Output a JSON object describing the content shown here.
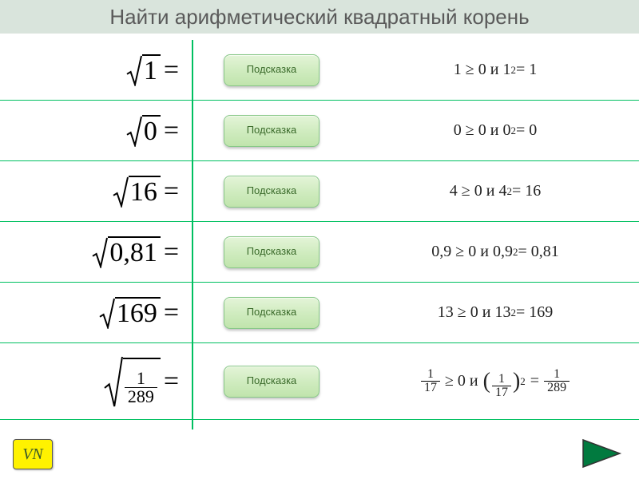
{
  "header": {
    "title": "Найти арифметический квадратный корень",
    "bg_color": "#d9e4dc",
    "text_color": "#5a5a5a"
  },
  "rows": [
    {
      "radicand": "1",
      "hint_label": "Подсказка",
      "answer": {
        "base": "1",
        "squared": "1",
        "result": "1"
      }
    },
    {
      "radicand": "0",
      "hint_label": "Подсказка",
      "answer": {
        "base": "0",
        "squared": "0",
        "result": "0"
      }
    },
    {
      "radicand": "16",
      "hint_label": "Подсказка",
      "answer": {
        "base": "4",
        "squared": "4",
        "result": "16"
      }
    },
    {
      "radicand": "0,81",
      "hint_label": "Подсказка",
      "answer": {
        "base": "0,9",
        "squared": "0,9",
        "result": "0,81"
      }
    },
    {
      "radicand": "169",
      "hint_label": "Подсказка",
      "answer": {
        "base": "13",
        "squared": "13",
        "result": "169"
      }
    },
    {
      "radicand_frac": {
        "num": "1",
        "den": "289"
      },
      "hint_label": "Подсказка",
      "answer_frac": {
        "base": {
          "num": "1",
          "den": "17"
        },
        "squared": {
          "num": "1",
          "den": "17"
        },
        "result": {
          "num": "1",
          "den": "289"
        }
      }
    }
  ],
  "style": {
    "accent_color": "#00c060",
    "hint_bg_top": "#e4f4d8",
    "hint_bg_bottom": "#c0e4ac",
    "hint_text_color": "#3a6a2a",
    "next_btn_fill": "#017a3f",
    "next_btn_stroke": "#333333",
    "vn_bg": "#fff200"
  },
  "vn_label": "VN",
  "connector": "и",
  "geq": "≥ 0"
}
